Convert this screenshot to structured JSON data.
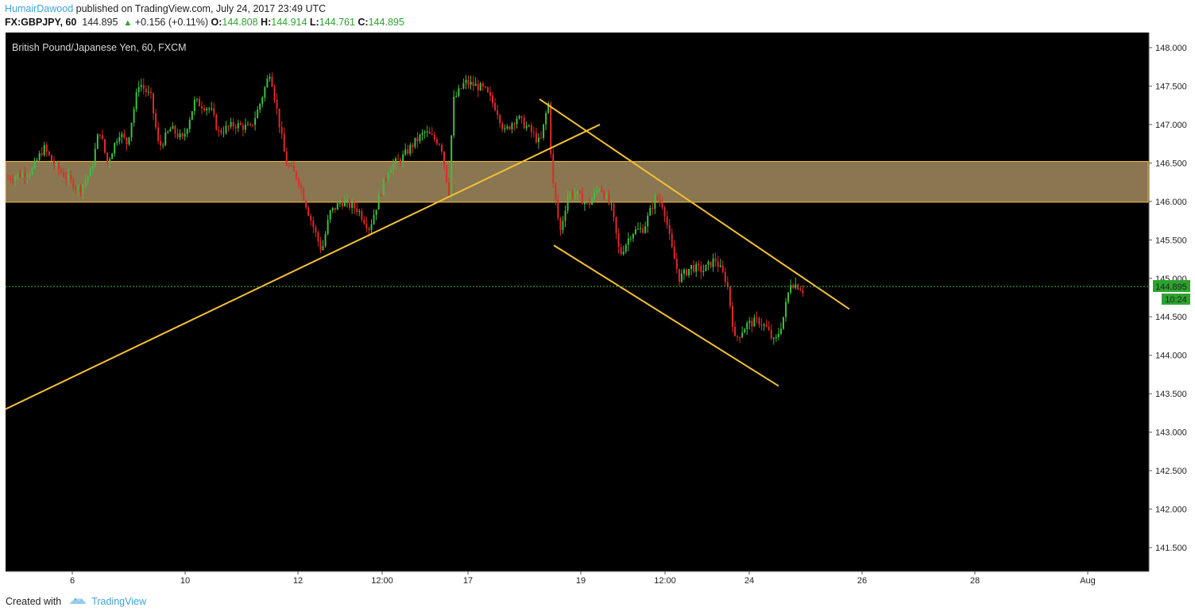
{
  "header": {
    "author": "HumairDawood",
    "published_text": " published on TradingView.com, July 24, 2017 23:49 UTC",
    "symbol": "FX:GBPJPY, 60",
    "last": "144.895",
    "change": "+0.156 (+0.11%)",
    "open_label": "O:",
    "open": "144.808",
    "high_label": "H:",
    "high": "144.914",
    "low_label": "L:",
    "low": "144.761",
    "close_label": "C:",
    "close": "144.895"
  },
  "footer": {
    "created_with": "Created with",
    "brand": "TradingView"
  },
  "colors": {
    "background": "#000000",
    "up_candle": "#3fbf3f",
    "down_candle": "#e0292b",
    "trendline": "#f2c037",
    "zone_fill": "#8a7650",
    "price_tag": "#2ea22e"
  },
  "chart_data": {
    "type": "candlestick",
    "title": "British Pound/Japanese Yen, 60, FXCM",
    "y_axis": {
      "ticks": [
        "148.000",
        "147.500",
        "147.000",
        "146.500",
        "146.000",
        "145.500",
        "145.000",
        "144.500",
        "144.000",
        "143.500",
        "143.000",
        "142.500",
        "142.000",
        "141.500"
      ],
      "ylim": [
        141.3,
        148.2
      ]
    },
    "x_axis": {
      "ticks": [
        "6",
        "10",
        "12",
        "12:00",
        "17",
        "19",
        "12:00",
        "24",
        "26",
        "28",
        "Aug"
      ]
    },
    "last_price": {
      "value": 144.895,
      "label": "144.895",
      "countdown": "10:24"
    },
    "resistance_zone": {
      "from": 145.99,
      "to": 146.52
    },
    "trendlines": [
      {
        "name": "rising-support",
        "start": [
          "Jul 5",
          143.3
        ],
        "end": [
          "Jul 19",
          147.0
        ]
      },
      {
        "name": "channel-upper",
        "start": [
          "Jul 18",
          147.33
        ],
        "end": [
          "Jul 25",
          144.6
        ]
      },
      {
        "name": "channel-lower",
        "start": [
          "Jul 18",
          145.43
        ],
        "end": [
          "Jul 25",
          143.6
        ]
      }
    ],
    "price_path": [
      [
        0,
        146.3
      ],
      [
        30,
        146.4
      ],
      [
        45,
        146.7
      ],
      [
        60,
        146.45
      ],
      [
        90,
        146.15
      ],
      [
        105,
        146.4
      ],
      [
        115,
        146.95
      ],
      [
        125,
        146.5
      ],
      [
        140,
        146.9
      ],
      [
        150,
        146.75
      ],
      [
        165,
        147.55
      ],
      [
        180,
        147.35
      ],
      [
        190,
        146.7
      ],
      [
        205,
        146.95
      ],
      [
        220,
        146.8
      ],
      [
        235,
        147.3
      ],
      [
        255,
        147.2
      ],
      [
        265,
        146.9
      ],
      [
        285,
        147.0
      ],
      [
        305,
        146.95
      ],
      [
        315,
        147.2
      ],
      [
        330,
        147.7
      ],
      [
        340,
        147.1
      ],
      [
        350,
        146.5
      ],
      [
        365,
        146.3
      ],
      [
        380,
        145.8
      ],
      [
        395,
        145.35
      ],
      [
        405,
        145.85
      ],
      [
        420,
        146.0
      ],
      [
        440,
        145.9
      ],
      [
        455,
        145.65
      ],
      [
        470,
        146.15
      ],
      [
        480,
        146.45
      ],
      [
        495,
        146.55
      ],
      [
        510,
        146.75
      ],
      [
        525,
        146.9
      ],
      [
        545,
        146.75
      ],
      [
        555,
        146.1
      ],
      [
        560,
        147.3
      ],
      [
        575,
        147.55
      ],
      [
        590,
        147.5
      ],
      [
        600,
        147.45
      ],
      [
        615,
        147.2
      ],
      [
        625,
        146.9
      ],
      [
        640,
        147.1
      ],
      [
        655,
        146.95
      ],
      [
        670,
        146.75
      ],
      [
        680,
        147.3
      ],
      [
        685,
        146.3
      ],
      [
        695,
        145.6
      ],
      [
        705,
        146.1
      ],
      [
        715,
        146.1
      ],
      [
        730,
        145.95
      ],
      [
        745,
        146.2
      ],
      [
        760,
        145.9
      ],
      [
        770,
        145.3
      ],
      [
        785,
        145.6
      ],
      [
        800,
        145.65
      ],
      [
        815,
        146.05
      ],
      [
        825,
        145.95
      ],
      [
        835,
        145.4
      ],
      [
        845,
        145.0
      ],
      [
        860,
        145.15
      ],
      [
        875,
        145.1
      ],
      [
        890,
        145.25
      ],
      [
        905,
        144.95
      ],
      [
        915,
        144.2
      ],
      [
        930,
        144.4
      ],
      [
        945,
        144.45
      ],
      [
        955,
        144.35
      ],
      [
        965,
        144.15
      ],
      [
        975,
        144.45
      ],
      [
        985,
        144.95
      ],
      [
        995,
        144.9
      ],
      [
        1005,
        144.8
      ],
      [
        1012,
        144.895
      ]
    ]
  }
}
